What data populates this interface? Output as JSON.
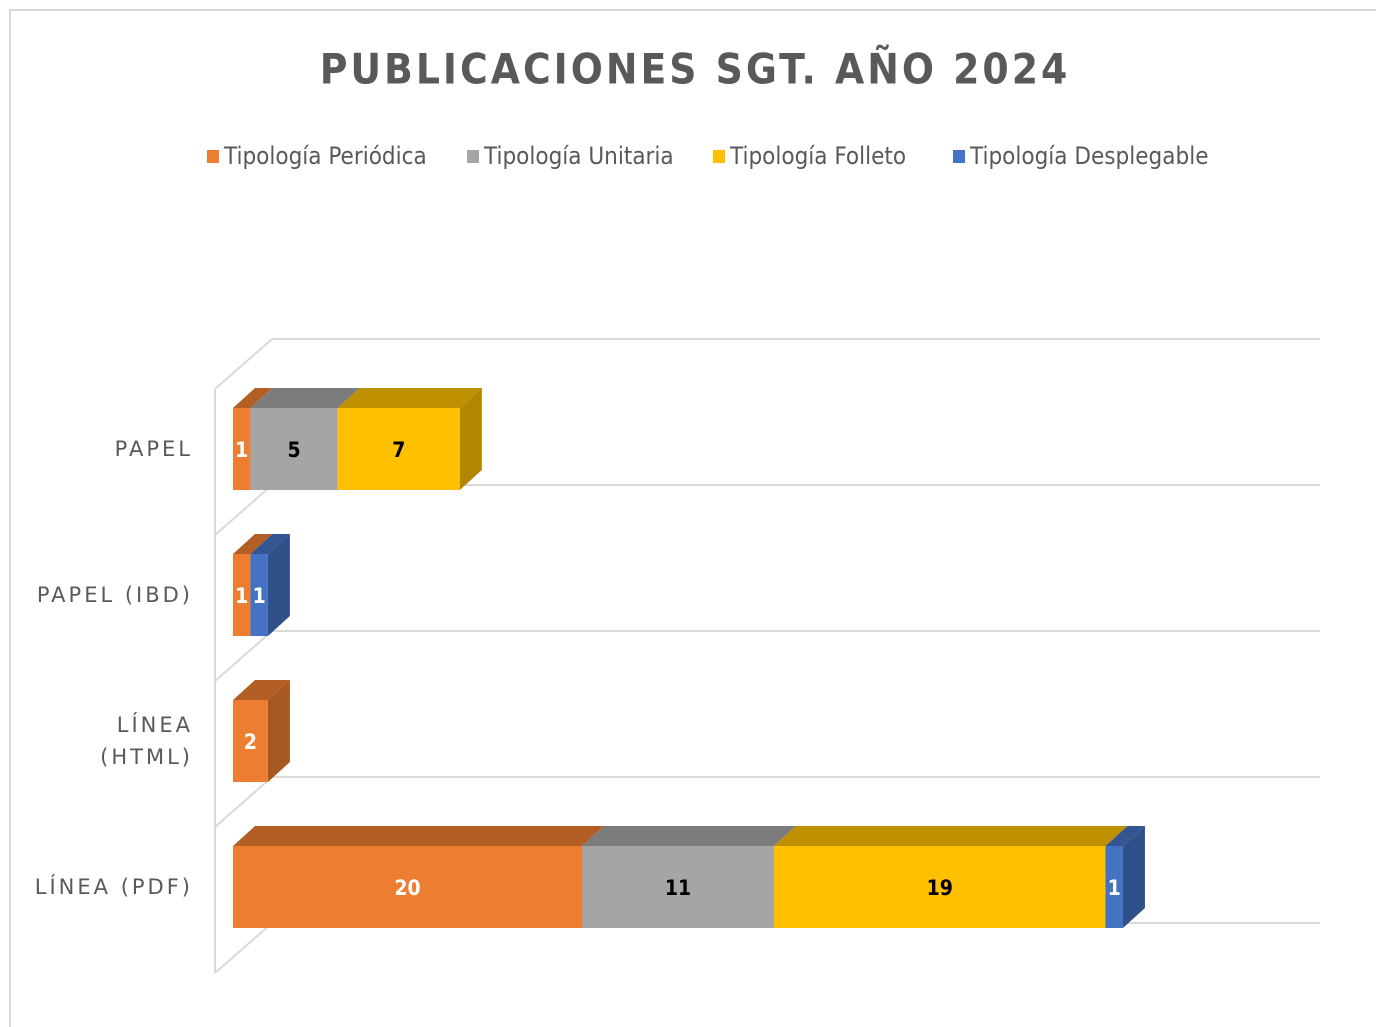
{
  "chart_data": {
    "type": "bar3d_stacked_horizontal",
    "title": "PUBLICACIONES  SGT. AÑO 2024",
    "categories": [
      "PAPEL",
      "PAPEL (IBD)",
      "LÍNEA (HTML)",
      "LÍNEA (PDF)"
    ],
    "series": [
      {
        "name": "Tipología Periódica",
        "color": "#ED7D31",
        "values": [
          1,
          1,
          2,
          20
        ]
      },
      {
        "name": "Tipología Unitaria",
        "color": "#A5A5A5",
        "values": [
          5,
          null,
          null,
          11
        ]
      },
      {
        "name": "Tipología Folleto",
        "color": "#FFC000",
        "values": [
          7,
          null,
          null,
          19
        ]
      },
      {
        "name": "Tipología Desplegable",
        "color": "#4472C4",
        "values": [
          null,
          1,
          null,
          1
        ]
      }
    ],
    "legend": "top",
    "grid": true
  }
}
